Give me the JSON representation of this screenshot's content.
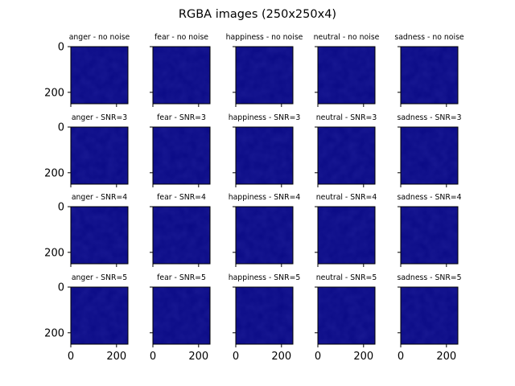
{
  "chart_data": {
    "type": "image-grid",
    "title": "RGBA images (250x250x4)",
    "rows": [
      "no noise",
      "SNR=3",
      "SNR=4",
      "SNR=5"
    ],
    "columns": [
      "anger",
      "fear",
      "happiness",
      "neutral",
      "sadness"
    ],
    "panel_titles": [
      [
        "anger - no noise",
        "fear - no noise",
        "happiness - no noise",
        "neutral - no noise",
        "sadness - no noise"
      ],
      [
        "anger - SNR=3",
        "fear - SNR=3",
        "happiness - SNR=3",
        "neutral - SNR=3",
        "sadness - SNR=3"
      ],
      [
        "anger - SNR=4",
        "fear - SNR=4",
        "happiness - SNR=4",
        "neutral - SNR=4",
        "sadness - SNR=4"
      ],
      [
        "anger - SNR=5",
        "fear - SNR=5",
        "happiness - SNR=5",
        "neutral - SNR=5",
        "sadness - SNR=5"
      ]
    ],
    "image_shape": [
      250,
      250,
      4
    ],
    "xlim": [
      0,
      250
    ],
    "ylim": [
      250,
      0
    ],
    "x_ticks": [
      0,
      200
    ],
    "y_ticks": [
      0,
      200
    ],
    "x_tick_labels": [
      "0",
      "200"
    ],
    "y_tick_labels": [
      "0",
      "200"
    ],
    "shared_axes": true,
    "image_color": "#0a0a85",
    "image_texture_color": "#1a1a9c",
    "frame_color": "#000000"
  }
}
